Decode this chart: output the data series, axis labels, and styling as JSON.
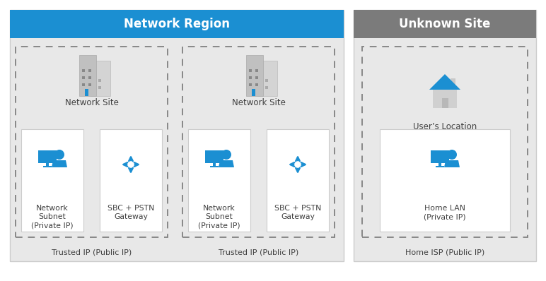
{
  "bg_color": "#ffffff",
  "title_bar_blue": "#1b8fd2",
  "title_bar_gray": "#7b7b7b",
  "title_text_color": "#ffffff",
  "outer_box_fill": "#e8e8e8",
  "outer_box_edge": "#cccccc",
  "inner_box_fill": "#ffffff",
  "inner_box_edge": "#cccccc",
  "dashed_edge": "#888888",
  "blue_color": "#1b8fd2",
  "text_color": "#404040",
  "region_title": "Network Region",
  "unknown_title": "Unknown Site",
  "site1_label": "Network Site",
  "site2_label": "Network Site",
  "users_location_label": "User’s Location",
  "sub1_label": "Network\nSubnet\n(Private IP)",
  "sbc1_label": "SBC + PSTN\nGateway",
  "sub2_label": "Network\nSubnet\n(Private IP)",
  "sbc2_label": "SBC + PSTN\nGateway",
  "home_lan_label": "Home LAN\n(Private IP)",
  "trusted1_label": "Trusted IP (Public IP)",
  "trusted2_label": "Trusted IP (Public IP)",
  "home_isp_label": "Home ISP (Public IP)"
}
